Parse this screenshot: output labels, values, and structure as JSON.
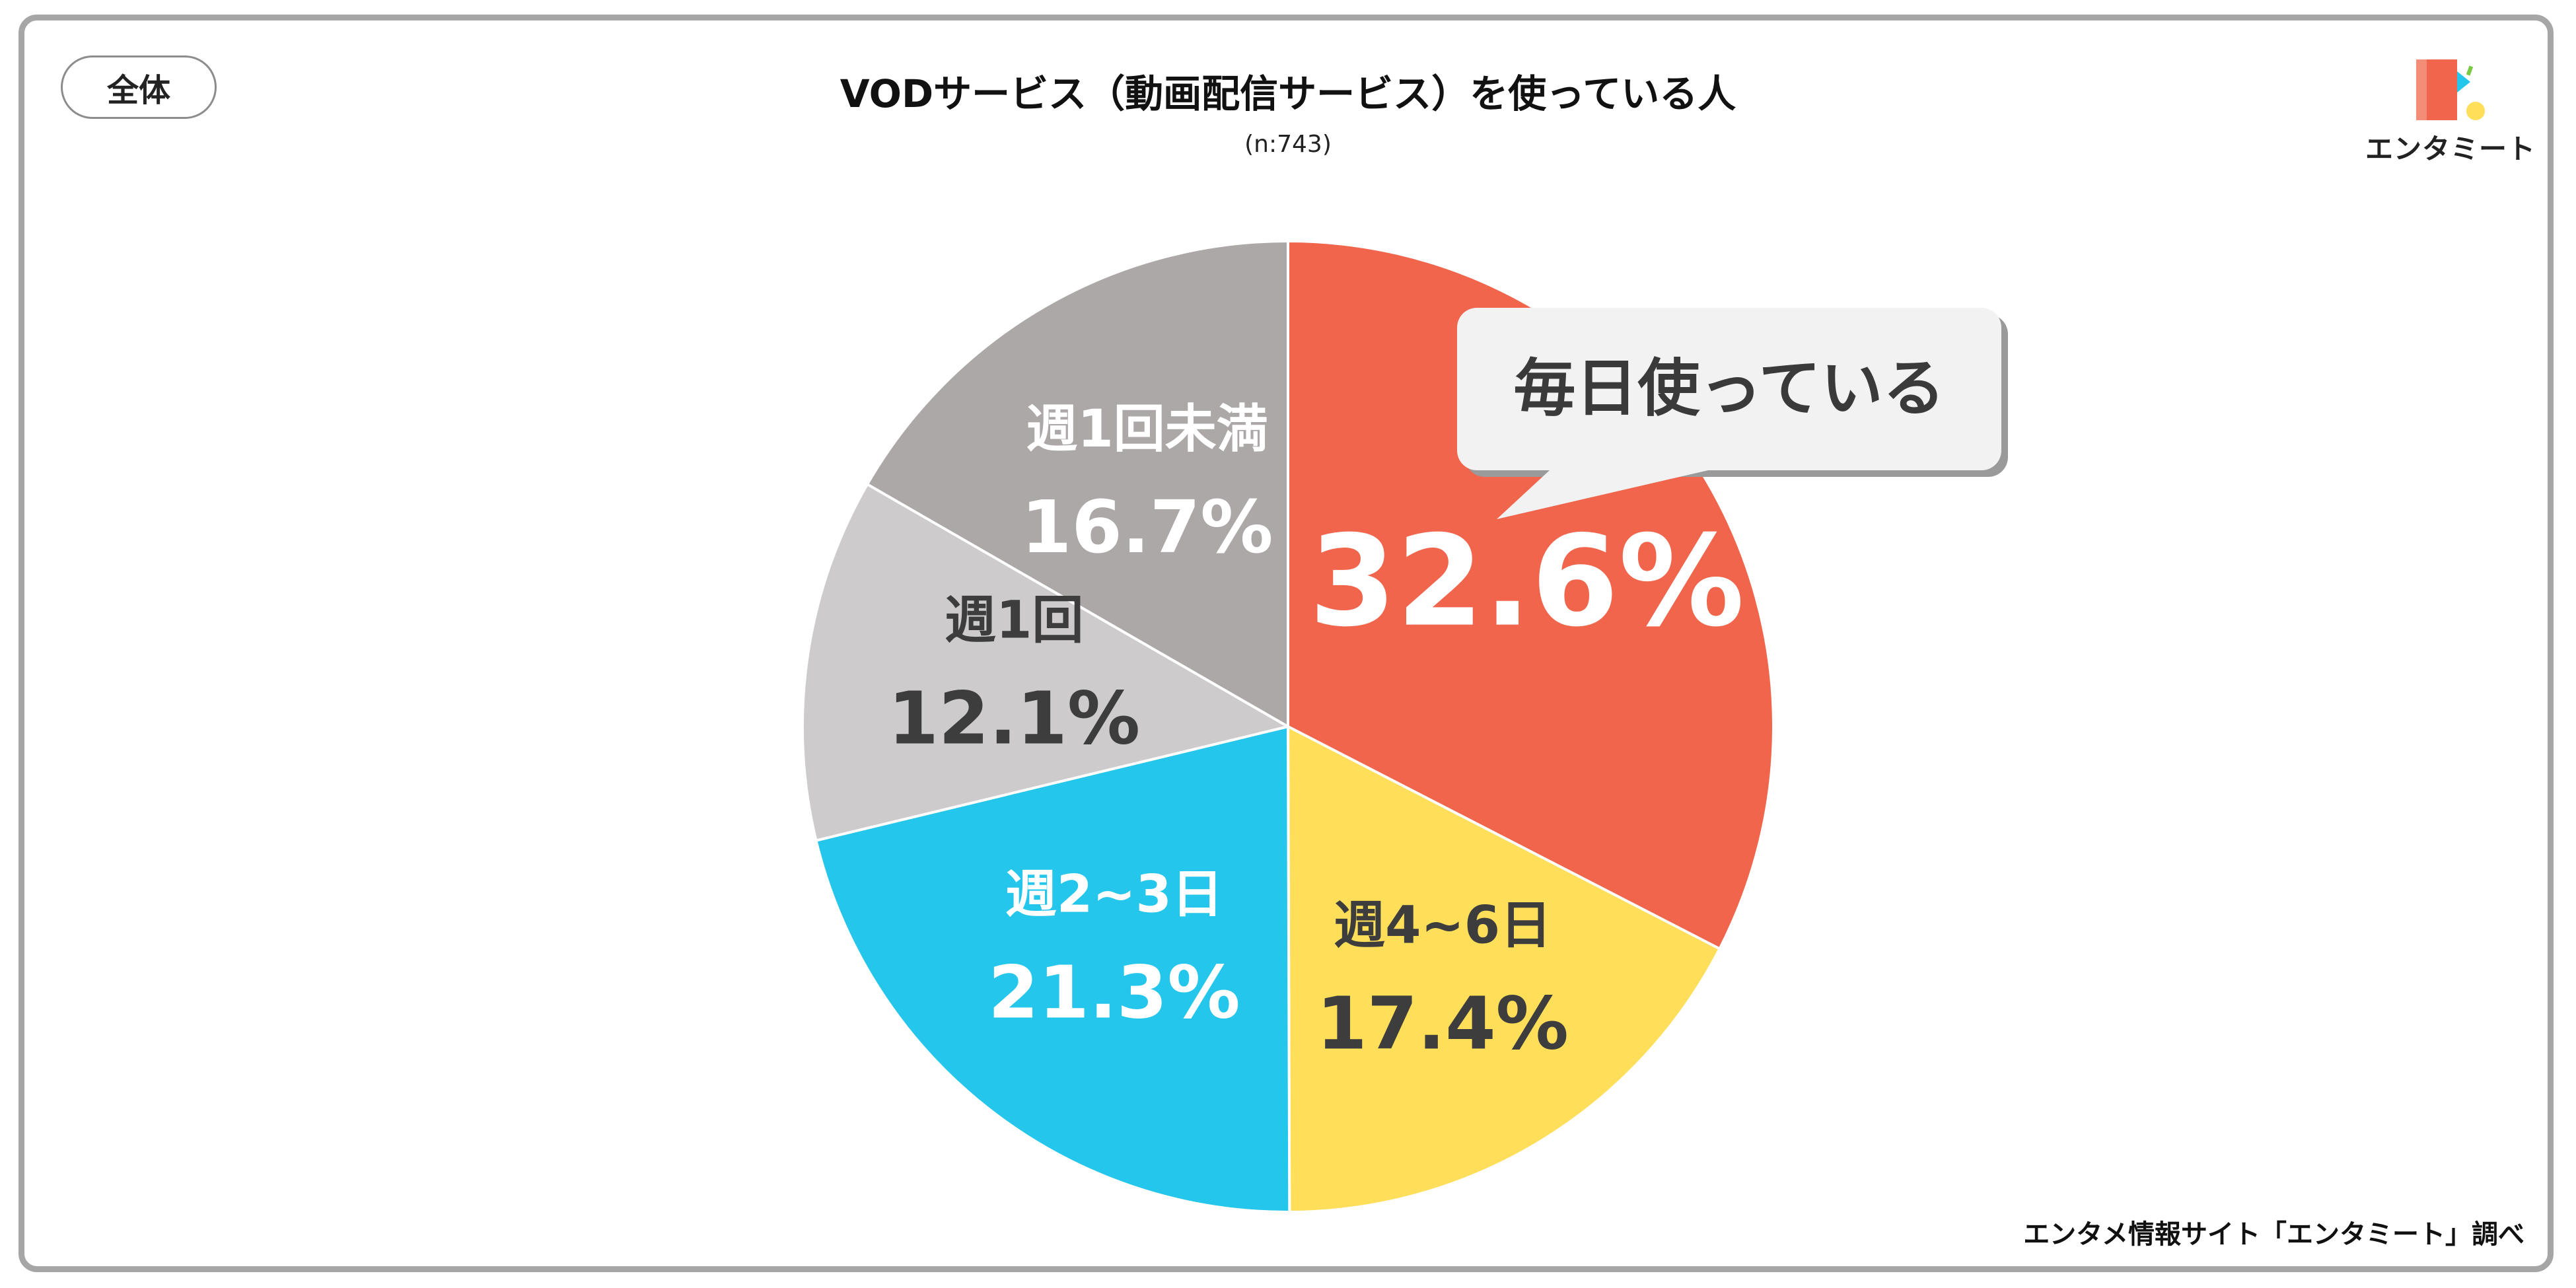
{
  "header": {
    "scope_label": "全体",
    "title": "VODサービス（動画配信サービス）を使っている人",
    "sample_size": "(n:743)"
  },
  "logo": {
    "text": "エンタミート",
    "icon": "entameet-logo-icon"
  },
  "footer": {
    "source": "エンタメ情報サイト「エンタミート」調べ"
  },
  "callout": {
    "text": "毎日使っている"
  },
  "chart_data": {
    "type": "pie",
    "title": "VODサービス（動画配信サービス）を使っている人",
    "subtitle": "(n:743)",
    "start_angle": "12 o'clock",
    "direction": "clockwise",
    "slices": [
      {
        "label": "毎日使っている",
        "value": 32.6,
        "value_label": "32.6%",
        "color": "#f0654b",
        "show_category": false
      },
      {
        "label": "週4~6日",
        "value": 17.4,
        "value_label": "17.4%",
        "color": "#ffde59",
        "show_category": true
      },
      {
        "label": "週2~3日",
        "value": 21.3,
        "value_label": "21.3%",
        "color": "#24c6ec",
        "show_category": true
      },
      {
        "label": "週1回",
        "value": 12.1,
        "value_label": "12.1%",
        "color": "#cdcbcc",
        "show_category": true
      },
      {
        "label": "週1回未満",
        "value": 16.7,
        "value_label": "16.7%",
        "color": "#aca8a7",
        "show_category": true
      }
    ]
  }
}
